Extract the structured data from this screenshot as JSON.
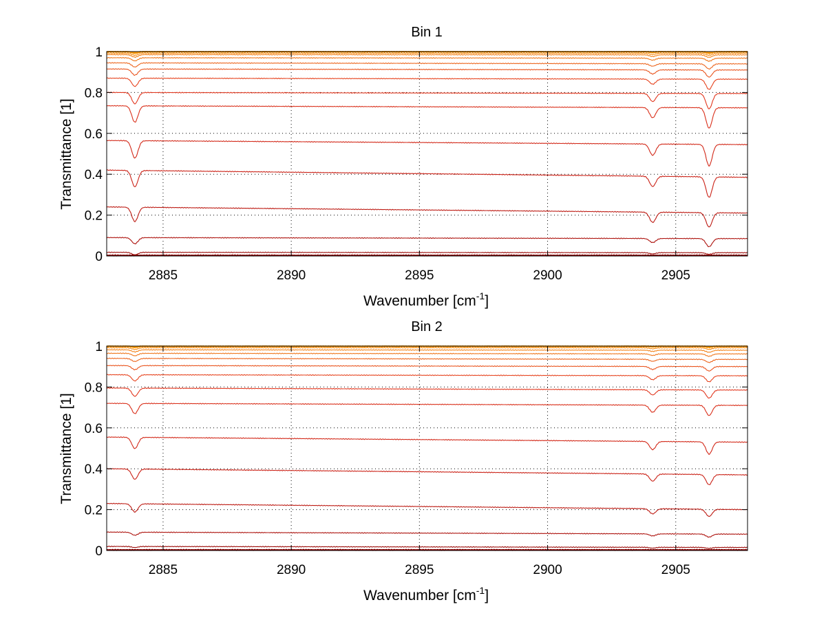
{
  "colors": {
    "background": "#ffffff",
    "axes": "#000000",
    "grid": "#000000",
    "trace_ramp": [
      "#8b0000",
      "#c81e14",
      "#e5391d",
      "#f07a1a",
      "#ff9a00"
    ]
  },
  "chart_data": [
    {
      "type": "line",
      "title": "Bin 1",
      "xlabel": "Wavenumber [cm",
      "xlabel_sup": "-1",
      "xlabel_suffix": "]",
      "ylabel": "Transmittance [1]",
      "xlim": [
        2882.8,
        2907.8
      ],
      "ylim": [
        0,
        1
      ],
      "xticks": [
        2885,
        2890,
        2895,
        2900,
        2905
      ],
      "xtick_labels": [
        "2885",
        "2890",
        "2895",
        "2900",
        "2905"
      ],
      "yticks": [
        0,
        0.2,
        0.4,
        0.6,
        0.8,
        1
      ],
      "ytick_labels": [
        "0",
        "0.2",
        "0.4",
        "0.6",
        "0.8",
        "1"
      ],
      "grid": true,
      "grid_style": "dotted",
      "absorption_lines_cm-1": [
        2883.9,
        2904.1,
        2906.3
      ],
      "series": [
        {
          "baseline": [
            0.003,
            0.003
          ],
          "dips": [
            0.0,
            0.0,
            0.0
          ]
        },
        {
          "baseline": [
            0.018,
            0.016
          ],
          "dips": [
            0.012,
            0.006,
            0.008
          ]
        },
        {
          "baseline": [
            0.09,
            0.085
          ],
          "dips": [
            0.03,
            0.02,
            0.04
          ]
        },
        {
          "baseline": [
            0.24,
            0.21
          ],
          "dips": [
            0.07,
            0.05,
            0.07
          ]
        },
        {
          "baseline": [
            0.42,
            0.385
          ],
          "dips": [
            0.08,
            0.05,
            0.1
          ]
        },
        {
          "baseline": [
            0.565,
            0.545
          ],
          "dips": [
            0.085,
            0.055,
            0.105
          ]
        },
        {
          "baseline": [
            0.735,
            0.725
          ],
          "dips": [
            0.08,
            0.05,
            0.1
          ]
        },
        {
          "baseline": [
            0.8,
            0.795
          ],
          "dips": [
            0.055,
            0.04,
            0.075
          ]
        },
        {
          "baseline": [
            0.87,
            0.865
          ],
          "dips": [
            0.04,
            0.025,
            0.05
          ]
        },
        {
          "baseline": [
            0.915,
            0.91
          ],
          "dips": [
            0.03,
            0.02,
            0.035
          ]
        },
        {
          "baseline": [
            0.945,
            0.94
          ],
          "dips": [
            0.02,
            0.012,
            0.025
          ]
        },
        {
          "baseline": [
            0.97,
            0.968
          ],
          "dips": [
            0.015,
            0.01,
            0.015
          ]
        },
        {
          "baseline": [
            0.985,
            0.984
          ],
          "dips": [
            0.012,
            0.008,
            0.012
          ]
        },
        {
          "baseline": [
            0.992,
            0.992
          ],
          "dips": [
            0.01,
            0.006,
            0.01
          ]
        },
        {
          "baseline": [
            0.998,
            0.998
          ],
          "dips": [
            0.008,
            0.004,
            0.008
          ]
        },
        {
          "baseline": [
            1.0,
            1.0
          ],
          "dips": [
            0.005,
            0.002,
            0.005
          ]
        }
      ]
    },
    {
      "type": "line",
      "title": "Bin 2",
      "xlabel": "Wavenumber [cm",
      "xlabel_sup": "-1",
      "xlabel_suffix": "]",
      "ylabel": "Transmittance [1]",
      "xlim": [
        2882.8,
        2907.8
      ],
      "ylim": [
        0,
        1
      ],
      "xticks": [
        2885,
        2890,
        2895,
        2900,
        2905
      ],
      "xtick_labels": [
        "2885",
        "2890",
        "2895",
        "2900",
        "2905"
      ],
      "yticks": [
        0,
        0.2,
        0.4,
        0.6,
        0.8,
        1
      ],
      "ytick_labels": [
        "0",
        "0.2",
        "0.4",
        "0.6",
        "0.8",
        "1"
      ],
      "grid": true,
      "grid_style": "dotted",
      "absorption_lines_cm-1": [
        2883.9,
        2904.1,
        2906.3
      ],
      "series": [
        {
          "baseline": [
            0.003,
            0.003
          ],
          "dips": [
            0.0,
            0.0,
            0.0
          ]
        },
        {
          "baseline": [
            0.02,
            0.015
          ],
          "dips": [
            0.005,
            0.004,
            0.005
          ]
        },
        {
          "baseline": [
            0.09,
            0.08
          ],
          "dips": [
            0.015,
            0.01,
            0.015
          ]
        },
        {
          "baseline": [
            0.23,
            0.2
          ],
          "dips": [
            0.04,
            0.025,
            0.035
          ]
        },
        {
          "baseline": [
            0.4,
            0.37
          ],
          "dips": [
            0.05,
            0.035,
            0.05
          ]
        },
        {
          "baseline": [
            0.555,
            0.53
          ],
          "dips": [
            0.055,
            0.04,
            0.06
          ]
        },
        {
          "baseline": [
            0.72,
            0.71
          ],
          "dips": [
            0.05,
            0.035,
            0.05
          ]
        },
        {
          "baseline": [
            0.795,
            0.785
          ],
          "dips": [
            0.04,
            0.025,
            0.04
          ]
        },
        {
          "baseline": [
            0.86,
            0.855
          ],
          "dips": [
            0.03,
            0.02,
            0.03
          ]
        },
        {
          "baseline": [
            0.905,
            0.9
          ],
          "dips": [
            0.02,
            0.015,
            0.022
          ]
        },
        {
          "baseline": [
            0.94,
            0.935
          ],
          "dips": [
            0.015,
            0.01,
            0.015
          ]
        },
        {
          "baseline": [
            0.965,
            0.962
          ],
          "dips": [
            0.012,
            0.008,
            0.012
          ]
        },
        {
          "baseline": [
            0.982,
            0.98
          ],
          "dips": [
            0.01,
            0.006,
            0.01
          ]
        },
        {
          "baseline": [
            0.992,
            0.992
          ],
          "dips": [
            0.008,
            0.005,
            0.008
          ]
        },
        {
          "baseline": [
            0.998,
            0.998
          ],
          "dips": [
            0.006,
            0.003,
            0.006
          ]
        },
        {
          "baseline": [
            1.0,
            1.0
          ],
          "dips": [
            0.004,
            0.002,
            0.004
          ]
        }
      ]
    }
  ]
}
